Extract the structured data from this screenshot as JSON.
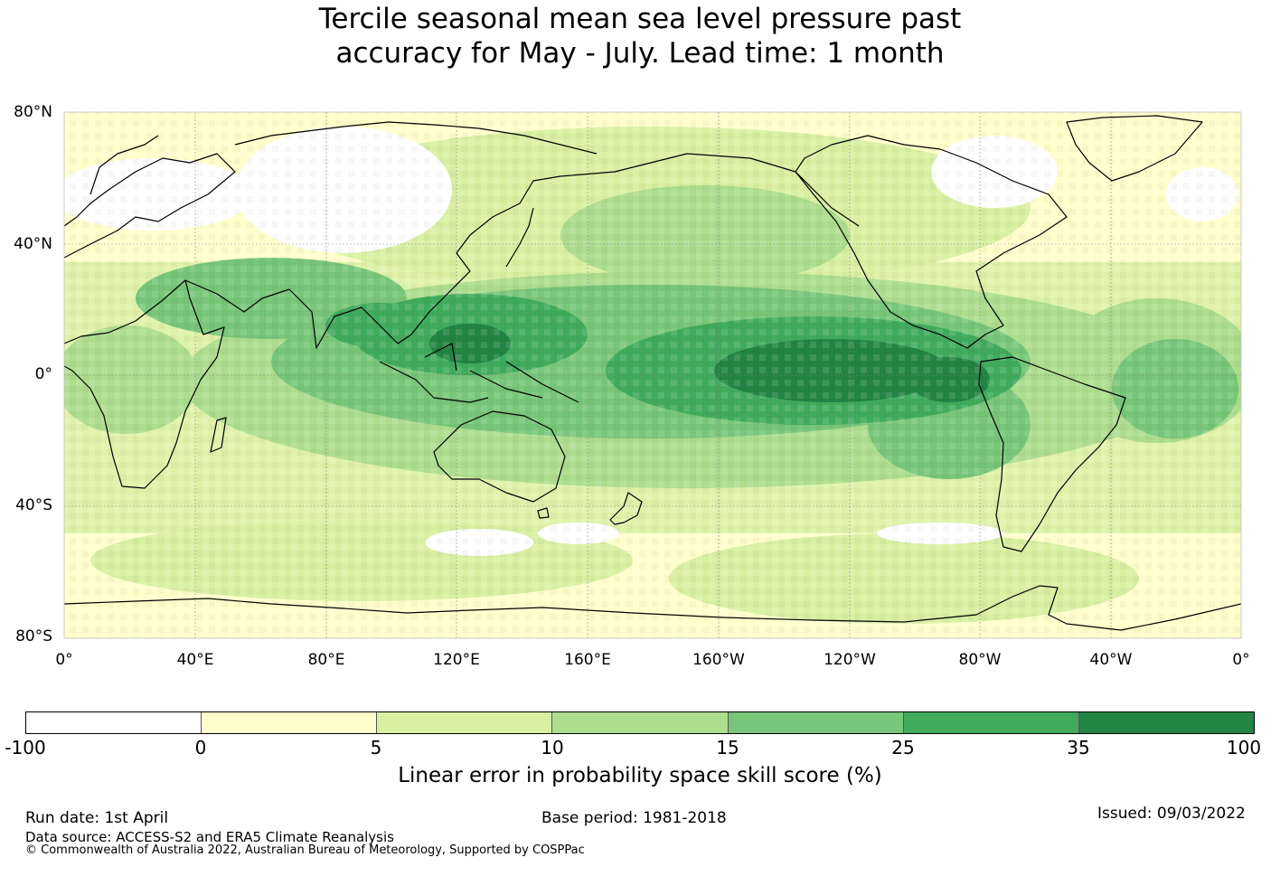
{
  "title": {
    "line1": "Tercile seasonal mean sea level pressure past",
    "line2": "accuracy for May - July. Lead time: 1 month"
  },
  "map": {
    "lat_labels": [
      "80°N",
      "40°N",
      "0°",
      "40°S",
      "80°S"
    ],
    "lon_labels": [
      "0°",
      "40°E",
      "80°E",
      "120°E",
      "160°E",
      "160°W",
      "120°W",
      "80°W",
      "40°W",
      "0°"
    ]
  },
  "colorbar": {
    "colors": [
      "#ffffff",
      "#ffffcc",
      "#d9f0a3",
      "#addd8e",
      "#78c679",
      "#41ab5d",
      "#238443"
    ],
    "ticks": [
      "-100",
      "0",
      "5",
      "10",
      "15",
      "25",
      "35",
      "100"
    ],
    "label": "Linear error in probability space skill score (%)"
  },
  "footer": {
    "run_date": "Run date: 1st April",
    "base_period": "Base period: 1981-2018",
    "issued": "Issued: 09/03/2022",
    "data_source": "Data source: ACCESS-S2 and ERA5 Climate Reanalysis",
    "copyright": "© Commonwealth of Australia 2022, Australian Bureau of Meteorology, Supported by COSPPac"
  }
}
